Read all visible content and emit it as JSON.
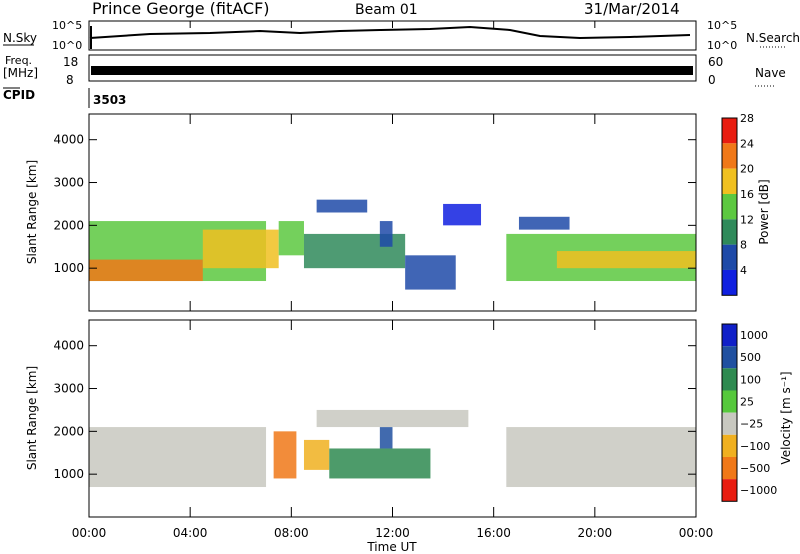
{
  "header": {
    "station": "Prince George (fitACF)",
    "beam": "Beam 01",
    "date": "31/Mar/2014"
  },
  "nsky": {
    "label": "N.Sky",
    "right_label": "N.Search",
    "left_ticks": [
      "10^5",
      "10^0"
    ],
    "right_ticks": [
      "10^5",
      "10^0"
    ]
  },
  "freq": {
    "label": "Freq.",
    "unit": "[MHz]",
    "right_label": "Nave",
    "left_ticks": [
      "18",
      "8"
    ],
    "right_ticks": [
      "60",
      "0"
    ]
  },
  "cpid": {
    "label": "CPID",
    "value": "3503"
  },
  "x_axis": {
    "label": "Time UT",
    "ticks": [
      "00:00",
      "04:00",
      "08:00",
      "12:00",
      "16:00",
      "20:00",
      "00:00"
    ],
    "range_hours": [
      0,
      24
    ]
  },
  "chart_data": [
    {
      "type": "heatmap",
      "panel": "power",
      "ylabel": "Slant Range [km]",
      "yticks": [
        1000,
        2000,
        3000,
        4000
      ],
      "ylim": [
        0,
        4600
      ],
      "xlim_hours": [
        0,
        24
      ],
      "colorbar": {
        "label": "Power [dB]",
        "ticks": [
          "4",
          "8",
          "12",
          "16",
          "20",
          "24",
          "28"
        ],
        "range": [
          0,
          32
        ]
      },
      "colors": [
        "#1020e0",
        "#1e4aa8",
        "#2f8a5a",
        "#5cc840",
        "#f0c020",
        "#f07818",
        "#e81c10"
      ],
      "bands": [
        {
          "t0": 0.0,
          "t1": 7.0,
          "r0": 700,
          "r1": 2100,
          "value": 18
        },
        {
          "t0": 0.0,
          "t1": 4.5,
          "r0": 700,
          "r1": 1200,
          "value": 27
        },
        {
          "t0": 4.5,
          "t1": 7.5,
          "r0": 1000,
          "r1": 1900,
          "value": 22
        },
        {
          "t0": 7.5,
          "t1": 8.5,
          "r0": 1300,
          "r1": 2100,
          "value": 14
        },
        {
          "t0": 8.5,
          "t1": 12.5,
          "r0": 1000,
          "r1": 1800,
          "value": 12
        },
        {
          "t0": 9.0,
          "t1": 11.0,
          "r0": 2300,
          "r1": 2600,
          "value": 8
        },
        {
          "t0": 11.5,
          "t1": 12.0,
          "r0": 1500,
          "r1": 2100,
          "value": 6
        },
        {
          "t0": 12.5,
          "t1": 14.5,
          "r0": 500,
          "r1": 1300,
          "value": 6
        },
        {
          "t0": 14.0,
          "t1": 15.5,
          "r0": 2000,
          "r1": 2500,
          "value": 4
        },
        {
          "t0": 16.5,
          "t1": 24.0,
          "r0": 700,
          "r1": 1800,
          "value": 14
        },
        {
          "t0": 18.5,
          "t1": 24.0,
          "r0": 1000,
          "r1": 1400,
          "value": 22
        },
        {
          "t0": 17.0,
          "t1": 19.0,
          "r0": 1900,
          "r1": 2200,
          "value": 6
        }
      ]
    },
    {
      "type": "heatmap",
      "panel": "velocity",
      "ylabel": "Slant Range [km]",
      "yticks": [
        1000,
        2000,
        3000,
        4000
      ],
      "ylim": [
        0,
        4600
      ],
      "xlim_hours": [
        0,
        24
      ],
      "colorbar": {
        "label": "Velocity [m s⁻¹]",
        "ticks": [
          "1000",
          "500",
          "100",
          "25",
          "−25",
          "−100",
          "−500",
          "−1000"
        ]
      },
      "colors": [
        "#1020c8",
        "#2050a0",
        "#2e8a50",
        "#56c83c",
        "#c8c8c0",
        "#f0b020",
        "#f07818",
        "#e81c10"
      ],
      "bands": [
        {
          "t0": 0.0,
          "t1": 7.0,
          "r0": 700,
          "r1": 2100,
          "value": "ground"
        },
        {
          "t0": 7.3,
          "t1": 8.2,
          "r0": 900,
          "r1": 2000,
          "value": "-500"
        },
        {
          "t0": 8.5,
          "t1": 9.5,
          "r0": 1100,
          "r1": 1800,
          "value": "-100"
        },
        {
          "t0": 9.5,
          "t1": 13.5,
          "r0": 900,
          "r1": 1600,
          "value": "100"
        },
        {
          "t0": 11.5,
          "t1": 12.0,
          "r0": 1600,
          "r1": 2100,
          "value": "500"
        },
        {
          "t0": 9.0,
          "t1": 15.0,
          "r0": 2100,
          "r1": 2500,
          "value": "ground"
        },
        {
          "t0": 16.5,
          "t1": 24.0,
          "r0": 700,
          "r1": 2100,
          "value": "ground"
        }
      ]
    }
  ]
}
